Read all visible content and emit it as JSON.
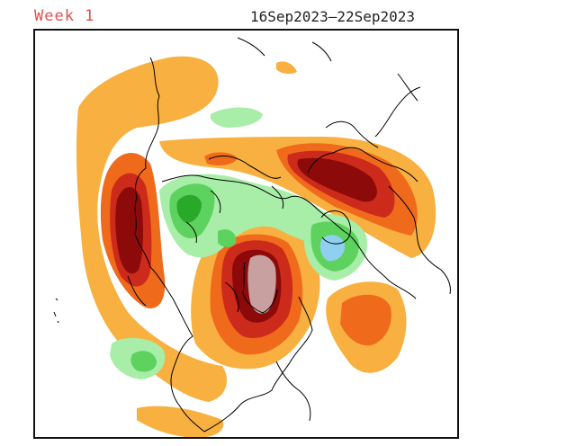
{
  "header": {
    "week_label": "Week 1",
    "date_range": "16Sep2023–22Sep2023"
  },
  "colors": {
    "week_label": "#e05050",
    "light_orange": "#f8b040",
    "dark_orange": "#f06a1c",
    "red": "#cc2a1a",
    "dark_red": "#8c0a0a",
    "pink": "#c8a0a0",
    "light_green": "#a8eea8",
    "green": "#5ed25e",
    "dark_green": "#2aa82a",
    "light_blue": "#8fd0f0",
    "coastline": "#000000"
  }
}
